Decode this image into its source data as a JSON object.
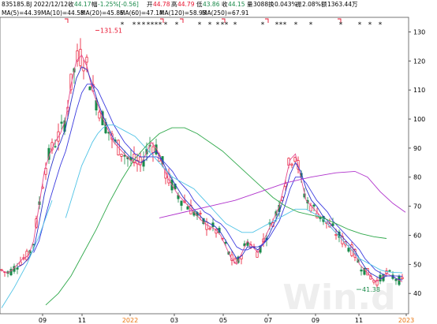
{
  "header": {
    "ticker_date": "835185.BJ 2022/12/12",
    "close_label": "收",
    "close": "44.17",
    "change_label": "幅",
    "change": "-1.25%[-0.56]",
    "open_label": "开",
    "open": "44.78",
    "high_label": "高",
    "high": "44.79",
    "low_label": "低",
    "low": "43.86",
    "volume_label": "收",
    "last": "44.15",
    "vol_label": "量",
    "vol": "3088",
    "turnover_label": "换",
    "turnover": "0.043%",
    "amplitude_label": "振",
    "amplitude": "2.08%",
    "amount_label": "额",
    "amount": "1363.44万"
  },
  "moving_averages": [
    {
      "label": "MA(5)=44.39",
      "color": "#e64a8c"
    },
    {
      "label": "MA(10)=44.58",
      "color": "#2a34c8"
    },
    {
      "label": "MA(20)=45.86",
      "color": "#3a3adf"
    },
    {
      "label": "MA(60)=47.14",
      "color": "#4fc3e6"
    },
    {
      "label": "MA(120)=58.93",
      "color": "#2ea84a"
    },
    {
      "label": "MA(250)=67.91",
      "color": "#b033cc"
    }
  ],
  "chart_data": {
    "type": "line",
    "title": "",
    "ylim": [
      33,
      135
    ],
    "y_ticks": [
      40,
      50,
      60,
      70,
      80,
      90,
      100,
      110,
      120,
      130
    ],
    "x_ticks": [
      "09",
      "11",
      "2022",
      "03",
      "05",
      "07",
      "09",
      "11",
      "2023"
    ],
    "annotations": [
      {
        "text": "131.51",
        "kind": "max"
      },
      {
        "text": "41.38",
        "kind": "min"
      }
    ],
    "colors": {
      "up": "#e8112d",
      "down": "#1a8a4a",
      "axis": "#333333",
      "grid": "#e8e8e8",
      "tick_highlight": "#e8740f"
    },
    "series": [
      {
        "name": "MA(5)",
        "color": "#e64a8c",
        "values": [
          48,
          47,
          48,
          50,
          52,
          53,
          58,
          70,
          82,
          88,
          92,
          95,
          100,
          112,
          120,
          122,
          118,
          110,
          105,
          100,
          96,
          92,
          90,
          88,
          86,
          85,
          84,
          88,
          92,
          90,
          85,
          80,
          77,
          74,
          72,
          70,
          68,
          66,
          64,
          63,
          62,
          60,
          56,
          52,
          50,
          54,
          58,
          56,
          54,
          58,
          62,
          66,
          70,
          78,
          86,
          88,
          80,
          72,
          70,
          68,
          66,
          64,
          62,
          60,
          58,
          56,
          54,
          50,
          48,
          46,
          44,
          45,
          47,
          46,
          45,
          44
        ]
      },
      {
        "name": "MA(10)",
        "color": "#2a34c8",
        "values": [
          null,
          null,
          null,
          49,
          50,
          52,
          55,
          64,
          74,
          82,
          88,
          92,
          97,
          106,
          114,
          118,
          117,
          112,
          106,
          101,
          97,
          93,
          91,
          89,
          87,
          86,
          85,
          86,
          88,
          89,
          86,
          82,
          79,
          76,
          73,
          71,
          69,
          67,
          65,
          64,
          63,
          61,
          58,
          55,
          52,
          53,
          56,
          56,
          55,
          57,
          60,
          64,
          68,
          74,
          81,
          85,
          82,
          76,
          72,
          70,
          67,
          65,
          63,
          61,
          59,
          57,
          55,
          52,
          49,
          47,
          46,
          45,
          46,
          46,
          45,
          44.6
        ]
      },
      {
        "name": "MA(20)",
        "color": "#3a3adf",
        "values": [
          null,
          null,
          null,
          null,
          null,
          null,
          54,
          58,
          65,
          72,
          78,
          84,
          89,
          96,
          103,
          109,
          112,
          112,
          110,
          106,
          102,
          98,
          95,
          92,
          90,
          88,
          87,
          87,
          87,
          87,
          86,
          84,
          82,
          79,
          77,
          75,
          72,
          70,
          68,
          67,
          65,
          64,
          62,
          59,
          56,
          55,
          55,
          56,
          56,
          57,
          59,
          62,
          65,
          70,
          76,
          80,
          80,
          78,
          75,
          72,
          70,
          68,
          65,
          63,
          61,
          59,
          57,
          55,
          52,
          50,
          48,
          47,
          46,
          46,
          46,
          45.9
        ]
      },
      {
        "name": "MA(60)",
        "color": "#4fc3e6",
        "values": [
          null,
          null,
          null,
          null,
          null,
          null,
          null,
          null,
          null,
          null,
          null,
          null,
          66,
          72,
          78,
          84,
          88,
          92,
          95,
          97,
          98,
          98,
          97,
          96,
          95,
          94,
          92,
          90,
          88,
          86,
          84,
          82,
          80,
          79,
          78,
          77,
          76,
          74,
          72,
          70,
          68,
          66,
          64,
          63,
          62,
          61,
          61,
          61,
          62,
          63,
          64,
          65,
          66,
          67,
          68,
          69,
          69,
          69,
          68,
          67,
          66,
          64,
          62,
          60,
          58,
          56,
          54,
          52,
          51,
          50,
          49,
          48,
          47.5,
          47.3,
          47.2,
          47.1
        ]
      },
      {
        "name": "MA(120)",
        "color": "#2ea84a",
        "values": [
          null,
          null,
          null,
          null,
          null,
          null,
          null,
          null,
          null,
          null,
          null,
          null,
          null,
          null,
          null,
          null,
          null,
          null,
          null,
          null,
          null,
          null,
          null,
          null,
          null,
          null,
          null,
          null,
          null,
          null,
          null,
          null,
          null,
          null,
          null,
          null,
          null,
          null,
          null,
          null,
          null,
          null,
          null,
          null,
          null,
          null,
          null,
          null,
          null,
          null,
          null,
          null,
          null,
          null,
          null,
          null,
          null,
          null,
          null,
          null,
          null,
          null,
          null,
          null,
          null,
          null,
          null,
          null,
          null,
          null,
          null,
          null,
          null,
          null,
          null,
          null
        ]
      },
      {
        "name": "MA(250)",
        "color": "#b033cc",
        "values": [
          null,
          null,
          null,
          null,
          null,
          null,
          null,
          null,
          null,
          null,
          null,
          null,
          null,
          null,
          null,
          null,
          null,
          null,
          null,
          null,
          null,
          null,
          null,
          null,
          null,
          null,
          null,
          null,
          null,
          null,
          null,
          null,
          null,
          null,
          null,
          null,
          null,
          null,
          null,
          null,
          null,
          null,
          null,
          null,
          null,
          null,
          null,
          null,
          null,
          null,
          null,
          null,
          null,
          null,
          null,
          null,
          null,
          null,
          null,
          null,
          null,
          null,
          null,
          null,
          null,
          null,
          null,
          null,
          null,
          null,
          null,
          null,
          null,
          null,
          null,
          null
        ]
      }
    ],
    "ma120_points": [
      [
        14,
        36
      ],
      [
        18,
        40
      ],
      [
        22,
        46
      ],
      [
        26,
        54
      ],
      [
        30,
        62
      ],
      [
        34,
        71
      ],
      [
        38,
        79
      ],
      [
        42,
        86
      ],
      [
        46,
        91
      ],
      [
        50,
        95
      ],
      [
        54,
        97
      ],
      [
        58,
        97
      ],
      [
        62,
        95
      ],
      [
        66,
        92
      ],
      [
        70,
        89
      ],
      [
        74,
        85
      ],
      [
        78,
        81
      ],
      [
        82,
        77
      ],
      [
        86,
        73
      ],
      [
        90,
        70
      ],
      [
        94,
        68
      ],
      [
        98,
        67
      ],
      [
        102,
        66
      ],
      [
        106,
        64
      ],
      [
        110,
        62
      ],
      [
        114,
        60.5
      ],
      [
        118,
        59.5
      ],
      [
        122,
        58.9
      ]
    ],
    "ma250_points": [
      [
        50,
        66
      ],
      [
        58,
        68
      ],
      [
        66,
        70
      ],
      [
        74,
        72
      ],
      [
        82,
        75
      ],
      [
        90,
        78
      ],
      [
        98,
        80
      ],
      [
        106,
        81.5
      ],
      [
        112,
        82
      ],
      [
        116,
        80
      ],
      [
        120,
        75
      ],
      [
        124,
        71
      ],
      [
        128,
        67.9
      ]
    ],
    "ma60_early_points": [
      [
        0,
        35
      ],
      [
        4,
        42
      ],
      [
        8,
        50
      ],
      [
        12,
        60
      ],
      [
        16,
        72
      ]
    ]
  }
}
